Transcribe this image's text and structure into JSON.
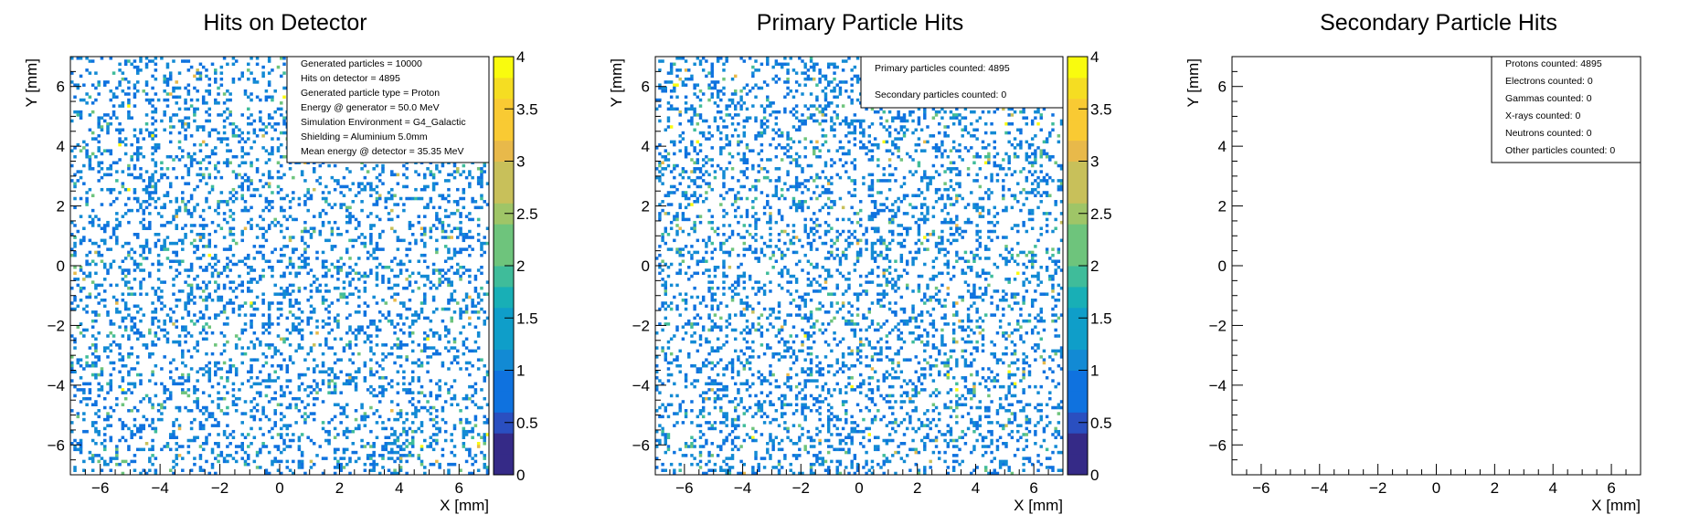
{
  "chart_data": [
    {
      "type": "heatmap",
      "title": "Hits on Detector",
      "xlabel": "X [mm]",
      "ylabel": "Y [mm]",
      "xlim": [
        -7,
        7
      ],
      "ylim": [
        -7,
        7
      ],
      "xticks": [
        "−6",
        "−4",
        "−2",
        "0",
        "2",
        "4",
        "6"
      ],
      "yticks": [
        "−6",
        "−4",
        "−2",
        "0",
        "2",
        "4",
        "6"
      ],
      "bins": [
        140,
        140
      ],
      "z_range": [
        0,
        4
      ],
      "colorbar_ticks": [
        "0",
        "0.5",
        "1",
        "1.5",
        "2",
        "2.5",
        "3",
        "3.5",
        "4"
      ],
      "total_hits": 4895,
      "stats": [
        "Generated particles = 10000",
        "Hits on detector = 4895",
        "Generated particle type = Proton",
        "Energy @ generator = 50.0 MeV",
        "Simulation Environment = G4_Galactic",
        "Shielding = Aluminium 5.0mm",
        "Mean energy @ detector = 35.35 MeV"
      ]
    },
    {
      "type": "heatmap",
      "title": "Primary Particle Hits",
      "xlabel": "X [mm]",
      "ylabel": "Y [mm]",
      "xlim": [
        -7,
        7
      ],
      "ylim": [
        -7,
        7
      ],
      "xticks": [
        "−6",
        "−4",
        "−2",
        "0",
        "2",
        "4",
        "6"
      ],
      "yticks": [
        "−6",
        "−4",
        "−2",
        "0",
        "2",
        "4",
        "6"
      ],
      "bins": [
        140,
        140
      ],
      "z_range": [
        0,
        4
      ],
      "colorbar_ticks": [
        "0",
        "0.5",
        "1",
        "1.5",
        "2",
        "2.5",
        "3",
        "3.5",
        "4"
      ],
      "total_hits": 4895,
      "stats": [
        "Primary particles counted: 4895",
        "Secondary particles counted: 0"
      ]
    },
    {
      "type": "heatmap",
      "title": "Secondary Particle Hits",
      "xlabel": "X [mm]",
      "ylabel": "Y [mm]",
      "xlim": [
        -7,
        7
      ],
      "ylim": [
        -7,
        7
      ],
      "xticks": [
        "−6",
        "−4",
        "−2",
        "0",
        "2",
        "4",
        "6"
      ],
      "yticks": [
        "−6",
        "−4",
        "−2",
        "0",
        "2",
        "4",
        "6"
      ],
      "bins": [
        140,
        140
      ],
      "total_hits": 0,
      "stats": [
        "Protons counted: 4895",
        "Electrons counted: 0",
        "Gammas counted: 0",
        "X-rays counted: 0",
        "Neutrons counted: 0",
        "Other particles counted: 0"
      ]
    }
  ],
  "colors": {
    "palette": [
      "#352a87",
      "#2a4fc0",
      "#0f72df",
      "#128ad4",
      "#0f9ec9",
      "#18afb6",
      "#3fbc9a",
      "#6ec47c",
      "#9fc567",
      "#c8c05a",
      "#e8b94a",
      "#f9ca33",
      "#f5dd22",
      "#f9fb0e"
    ],
    "frame": "#000000"
  }
}
